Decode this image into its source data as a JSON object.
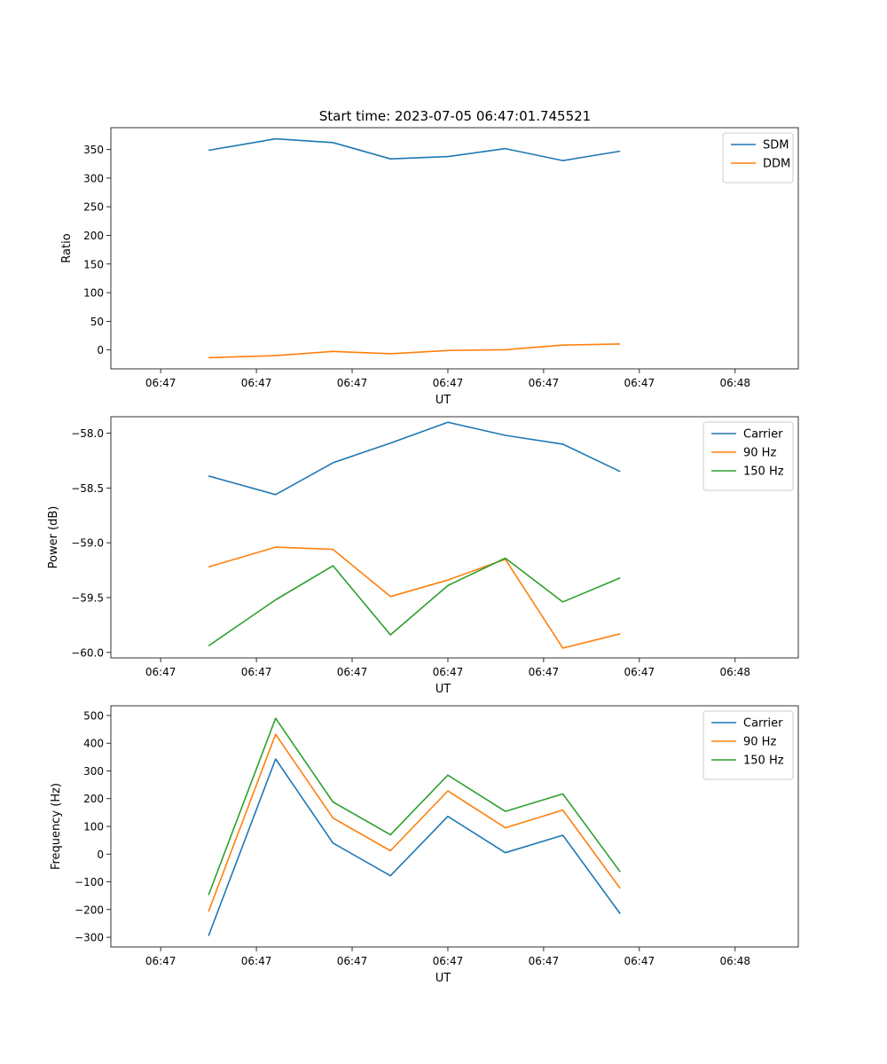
{
  "figure": {
    "title": "Start time: 2023-07-05 06:47:01.745521"
  },
  "chart_data": [
    {
      "type": "line",
      "title": "Start time: 2023-07-05 06:47:01.745521",
      "xlabel": "UT",
      "ylabel": "Ratio",
      "x_tick_labels": [
        "06:47",
        "06:47",
        "06:47",
        "06:47",
        "06:47",
        "06:47",
        "06:48"
      ],
      "xlim": [
        -0.26,
        3.33
      ],
      "x": [
        0.25,
        0.6,
        0.9,
        1.2,
        1.5,
        1.8,
        2.1,
        2.4
      ],
      "ylim": [
        -33,
        388
      ],
      "yticks": [
        0,
        50,
        100,
        150,
        200,
        250,
        300,
        350
      ],
      "legend": "top-right",
      "series": [
        {
          "name": "SDM",
          "color": "#1f77b4",
          "values": [
            348.5,
            368.5,
            362.0,
            333.5,
            337.5,
            351.5,
            330.5,
            347.0
          ]
        },
        {
          "name": "DDM",
          "color": "#ff7f0e",
          "values": [
            -13.5,
            -10.0,
            -2.5,
            -6.5,
            -1.0,
            0.5,
            8.5,
            10.5
          ]
        }
      ]
    },
    {
      "type": "line",
      "title": "",
      "xlabel": "UT",
      "ylabel": "Power (dB)",
      "x_tick_labels": [
        "06:47",
        "06:47",
        "06:47",
        "06:47",
        "06:47",
        "06:47",
        "06:48"
      ],
      "xlim": [
        -0.26,
        3.33
      ],
      "x": [
        0.25,
        0.6,
        0.9,
        1.2,
        1.5,
        1.8,
        2.1,
        2.4
      ],
      "ylim": [
        -60.05,
        -57.85
      ],
      "yticks": [
        -60.0,
        -59.5,
        -59.0,
        -58.5,
        -58.0
      ],
      "legend": "top-right",
      "series": [
        {
          "name": "Carrier",
          "color": "#1f77b4",
          "values": [
            -58.39,
            -58.56,
            -58.27,
            -58.09,
            -57.9,
            -58.02,
            -58.1,
            -58.35
          ]
        },
        {
          "name": "90 Hz",
          "color": "#ff7f0e",
          "values": [
            -59.22,
            -59.04,
            -59.06,
            -59.49,
            -59.34,
            -59.15,
            -59.96,
            -59.83
          ]
        },
        {
          "name": "150 Hz",
          "color": "#2ca02c",
          "values": [
            -59.94,
            -59.52,
            -59.21,
            -59.84,
            -59.39,
            -59.14,
            -59.54,
            -59.32
          ]
        }
      ]
    },
    {
      "type": "line",
      "title": "",
      "xlabel": "UT",
      "ylabel": "Frequency (Hz)",
      "x_tick_labels": [
        "06:47",
        "06:47",
        "06:47",
        "06:47",
        "06:47",
        "06:47",
        "06:48"
      ],
      "xlim": [
        -0.26,
        3.33
      ],
      "x": [
        0.25,
        0.6,
        0.9,
        1.2,
        1.5,
        1.8,
        2.1,
        2.4
      ],
      "ylim": [
        -335,
        535
      ],
      "yticks": [
        -300,
        -200,
        -100,
        0,
        100,
        200,
        300,
        400,
        500
      ],
      "legend": "top-right",
      "series": [
        {
          "name": "Carrier",
          "color": "#1f77b4",
          "values": [
            -295,
            343,
            40,
            -78,
            136,
            5,
            68,
            -215
          ]
        },
        {
          "name": "90 Hz",
          "color": "#ff7f0e",
          "values": [
            -207,
            432,
            130,
            12,
            228,
            95,
            159,
            -124
          ]
        },
        {
          "name": "150 Hz",
          "color": "#2ca02c",
          "values": [
            -148,
            490,
            188,
            70,
            285,
            154,
            217,
            -64
          ]
        }
      ]
    }
  ]
}
